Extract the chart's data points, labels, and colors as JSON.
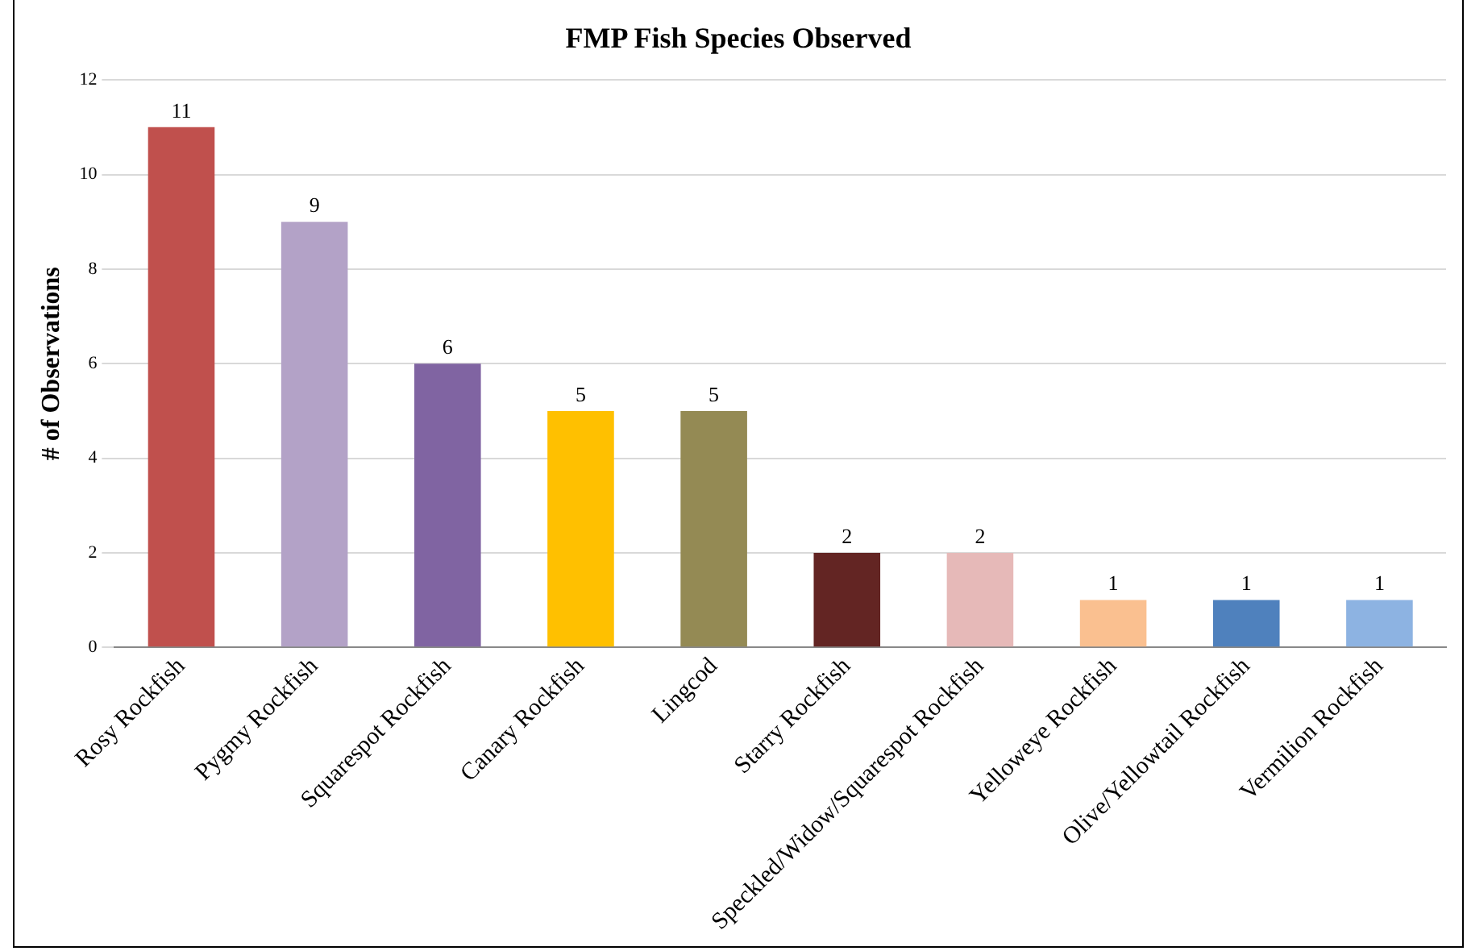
{
  "chart_data": {
    "type": "bar",
    "title": "FMP Fish Species Observed",
    "ylabel": "# of Observations",
    "categories": [
      "Rosy Rockfish",
      "Pygmy Rockfish",
      "Squarespot Rockfish",
      "Canary Rockfish",
      "Lingcod",
      "Starry Rockfish",
      "Speckled/Widow/Squarespot Rockfish",
      "Yelloweye Rockfish",
      "Olive/Yellowtail Rockfish",
      "Vermilion Rockfish"
    ],
    "values": [
      11,
      9,
      6,
      5,
      5,
      2,
      2,
      1,
      1,
      1
    ],
    "colors": [
      "#c0504d",
      "#b3a2c7",
      "#8064a2",
      "#ffc000",
      "#948a54",
      "#632523",
      "#e6b9b8",
      "#fac090",
      "#4f81bd",
      "#8db3e2"
    ],
    "ylim": [
      0,
      12
    ],
    "yticks": [
      0,
      2,
      4,
      6,
      8,
      10,
      12
    ],
    "grid": "y",
    "data_labels": true
  }
}
